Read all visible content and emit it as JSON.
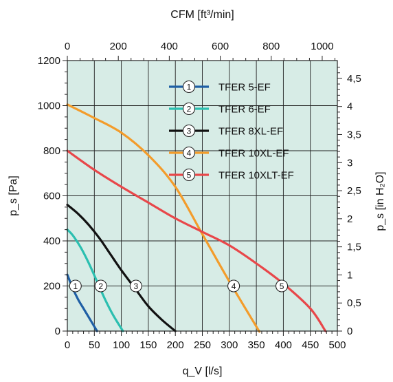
{
  "chart_data": {
    "type": "line",
    "title": "",
    "xlabel": "q_V [l/s]",
    "ylabel": "p_s [Pa]",
    "top_xlabel": "CFM [ft³/min]",
    "right_ylabel": "p_s [in H₂O]",
    "xlim": [
      0,
      500
    ],
    "ylim": [
      0,
      1200
    ],
    "x_ticks": [
      0,
      50,
      100,
      150,
      200,
      250,
      300,
      350,
      400,
      450,
      500
    ],
    "y_ticks": [
      0,
      200,
      400,
      600,
      800,
      1000,
      1200
    ],
    "top_x_ticks": [
      0,
      200,
      400,
      600,
      800,
      1000
    ],
    "right_y_ticks": [
      "0",
      "0,5",
      "1",
      "1,5",
      "2",
      "2,5",
      "3",
      "3,5",
      "4",
      "4,5"
    ],
    "right_y_values": [
      0,
      0.5,
      1,
      1.5,
      2,
      2.5,
      3,
      3.5,
      4,
      4.5
    ],
    "grid": true,
    "background_color": "#d7ece6",
    "legend_position": "top-right",
    "series": [
      {
        "name": "TFER 5-EF",
        "marker": "1",
        "color": "#1f5fa5",
        "x": [
          0,
          10,
          20,
          30,
          40,
          50,
          55
        ],
        "y": [
          250,
          190,
          140,
          100,
          60,
          20,
          0
        ],
        "marker_at": [
          15,
          200
        ]
      },
      {
        "name": "TFER 6-EF",
        "marker": "2",
        "color": "#2bbfb0",
        "x": [
          0,
          10,
          25,
          40,
          55,
          70,
          85,
          103
        ],
        "y": [
          450,
          425,
          370,
          300,
          220,
          140,
          70,
          0
        ],
        "marker_at": [
          62,
          200
        ]
      },
      {
        "name": "TFER 8XL-EF",
        "marker": "3",
        "color": "#111111",
        "x": [
          0,
          20,
          40,
          60,
          80,
          100,
          125,
          150,
          175,
          200
        ],
        "y": [
          560,
          520,
          470,
          410,
          340,
          270,
          190,
          110,
          50,
          0
        ],
        "marker_at": [
          127,
          200
        ]
      },
      {
        "name": "TFER 10XL-EF",
        "marker": "4",
        "color": "#f39c2b",
        "x": [
          0,
          50,
          100,
          150,
          200,
          250,
          300,
          350,
          355
        ],
        "y": [
          1005,
          945,
          880,
          780,
          640,
          430,
          220,
          20,
          0
        ],
        "marker_at": [
          308,
          200
        ]
      },
      {
        "name": "TFER 10XLT-EF",
        "marker": "5",
        "color": "#e8474a",
        "x": [
          0,
          50,
          100,
          150,
          200,
          250,
          300,
          350,
          400,
          450,
          478
        ],
        "y": [
          800,
          715,
          640,
          570,
          500,
          440,
          380,
          300,
          210,
          100,
          0
        ],
        "marker_at": [
          397,
          200
        ]
      }
    ]
  }
}
